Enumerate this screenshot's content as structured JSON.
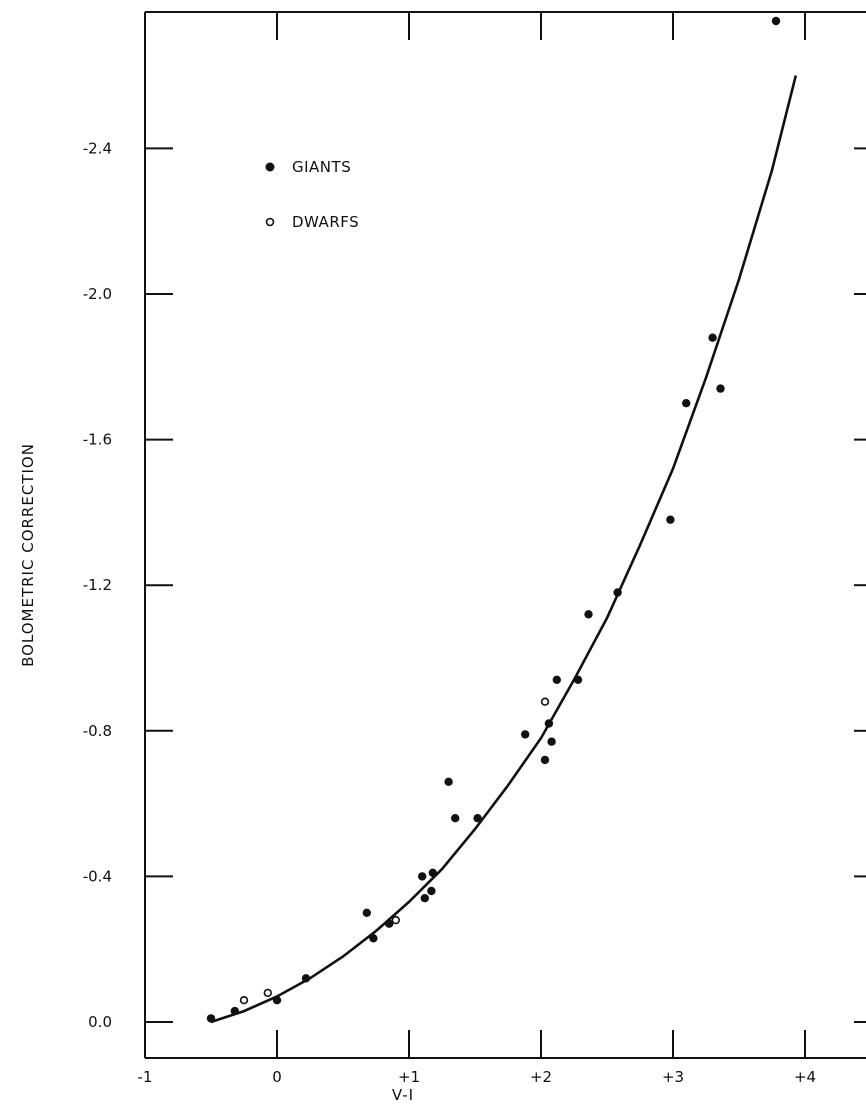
{
  "chart_data": {
    "type": "scatter",
    "title": "",
    "xlabel": "V-I",
    "ylabel": "BOLOMETRIC CORRECTION",
    "xlim": [
      -1,
      4.5
    ],
    "ylim": [
      0.2,
      -2.65
    ],
    "y_axis_inverted": true,
    "x_ticks": [
      -1,
      0,
      1,
      2,
      3,
      4
    ],
    "x_tick_labels": [
      "-1",
      "0",
      "+1",
      "+2",
      "+3",
      "+4"
    ],
    "y_ticks": [
      0.0,
      -0.4,
      -0.8,
      -1.2,
      -1.6,
      -2.0,
      -2.4
    ],
    "y_tick_labels": [
      "0.0",
      "-0.4",
      "-0.8",
      "-1.2",
      "-1.6",
      "-2.0",
      "-2.4"
    ],
    "grid": false,
    "legend_position": "top-left",
    "legend": [
      {
        "label": "GIANTS",
        "marker": "filled-circle"
      },
      {
        "label": "DWARFS",
        "marker": "open-circle"
      }
    ],
    "series": [
      {
        "name": "GIANTS",
        "marker": "filled-circle",
        "points": [
          [
            -0.5,
            -0.01
          ],
          [
            -0.32,
            -0.03
          ],
          [
            0.0,
            -0.06
          ],
          [
            0.22,
            -0.12
          ],
          [
            0.68,
            -0.3
          ],
          [
            0.73,
            -0.23
          ],
          [
            0.85,
            -0.27
          ],
          [
            1.1,
            -0.4
          ],
          [
            1.12,
            -0.34
          ],
          [
            1.17,
            -0.36
          ],
          [
            1.18,
            -0.41
          ],
          [
            1.3,
            -0.66
          ],
          [
            1.35,
            -0.56
          ],
          [
            1.52,
            -0.56
          ],
          [
            1.88,
            -0.79
          ],
          [
            2.03,
            -0.72
          ],
          [
            2.06,
            -0.82
          ],
          [
            2.08,
            -0.77
          ],
          [
            2.12,
            -0.94
          ],
          [
            2.28,
            -0.94
          ],
          [
            2.36,
            -1.12
          ],
          [
            2.58,
            -1.18
          ],
          [
            2.98,
            -1.38
          ],
          [
            3.1,
            -1.7
          ],
          [
            3.3,
            -1.88
          ],
          [
            3.36,
            -1.74
          ],
          [
            3.78,
            -2.75
          ]
        ]
      },
      {
        "name": "DWARFS",
        "marker": "open-circle",
        "points": [
          [
            -0.25,
            -0.06
          ],
          [
            -0.07,
            -0.08
          ],
          [
            0.9,
            -0.28
          ],
          [
            2.03,
            -0.88
          ]
        ]
      }
    ],
    "fit_curve": {
      "x": [
        -0.5,
        -0.25,
        0.0,
        0.25,
        0.5,
        0.75,
        1.0,
        1.25,
        1.5,
        1.75,
        2.0,
        2.25,
        2.5,
        2.75,
        3.0,
        3.25,
        3.5,
        3.75,
        3.93
      ],
      "y": [
        0.0,
        -0.03,
        -0.07,
        -0.12,
        -0.18,
        -0.25,
        -0.33,
        -0.42,
        -0.53,
        -0.65,
        -0.78,
        -0.94,
        -1.11,
        -1.31,
        -1.52,
        -1.77,
        -2.04,
        -2.34,
        -2.6
      ]
    }
  }
}
